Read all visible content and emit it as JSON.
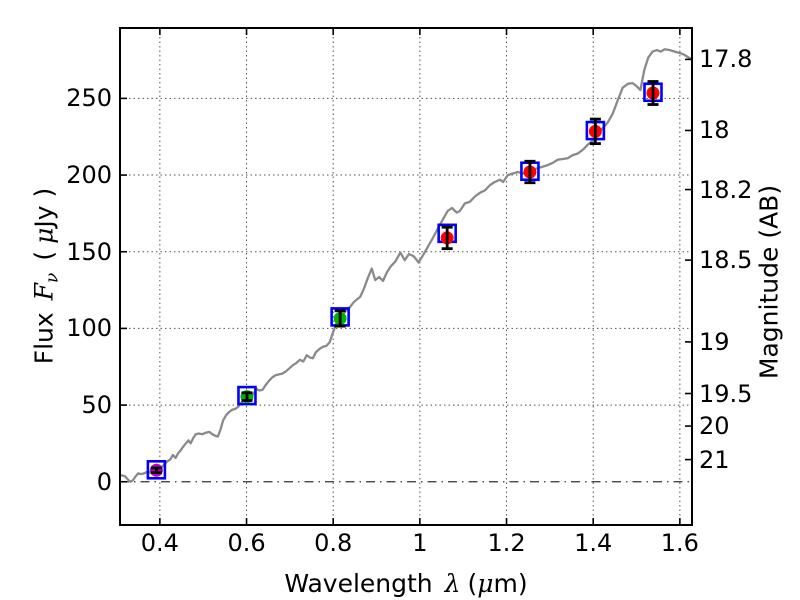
{
  "labels": {
    "xlabel": {
      "prefix": "Wavelength",
      "symbol": "λ",
      "unit_open": "(",
      "unit_mu": "μ",
      "unit_close": "m)"
    },
    "ylabel_left": {
      "prefix": "Flux",
      "symbol": "F",
      "subscript": "ν",
      "unit_open": "(",
      "unit_mu": "μ",
      "unit_close": "Jy )"
    },
    "ylabel_right": "Magnitude (AB)"
  },
  "chart_data": {
    "type": "line",
    "title": "",
    "xlabel": "Wavelength λ (μm)",
    "ylabel_left": "Flux Fν ( μJy )",
    "ylabel_right": "Magnitude (AB)",
    "xlim": [
      0.308,
      1.628
    ],
    "ylim_flux": [
      -28.2,
      295.9
    ],
    "xticks": [
      0.4,
      0.6,
      0.8,
      1.0,
      1.2,
      1.4,
      1.6
    ],
    "xtick_labels": [
      "0.4",
      "0.6",
      "0.8",
      "1",
      "1.2",
      "1.4",
      "1.6"
    ],
    "yticks_flux": [
      0,
      50,
      100,
      150,
      200,
      250
    ],
    "ytick_labels_flux": [
      "0",
      "50",
      "100",
      "150",
      "200",
      "250"
    ],
    "yticks_mag": [
      17.8,
      18.0,
      18.2,
      18.5,
      19.0,
      19.5,
      20.0,
      21.0
    ],
    "ytick_labels_mag": [
      "17.8",
      "18",
      "18.2",
      "18.5",
      "19",
      "19.5",
      "20",
      "21"
    ],
    "mag_ab_zeropoint_ujy": 23.9,
    "grid": "dotted at major ticks of bottom and left axes",
    "zero_flux_line_style": "dash-dot",
    "colors": {
      "spectrum": "#8a8a8a",
      "model_square": "#0000ff",
      "errorbar": "#000000",
      "grid": "#555555",
      "point_uv": "#bf00bf",
      "point_optical": "#00b200",
      "point_infrared": "#ff0000"
    },
    "series": [
      {
        "name": "model-spectrum",
        "type": "line",
        "color": "#8a8a8a",
        "points": [
          [
            0.308,
            4.5
          ],
          [
            0.314,
            4.0
          ],
          [
            0.32,
            3.5
          ],
          [
            0.326,
            1.5
          ],
          [
            0.332,
            0.0
          ],
          [
            0.338,
            1.0
          ],
          [
            0.344,
            3.5
          ],
          [
            0.35,
            5.5
          ],
          [
            0.357,
            5.0
          ],
          [
            0.364,
            5.5
          ],
          [
            0.371,
            6.5
          ],
          [
            0.378,
            6.0
          ],
          [
            0.385,
            7.0
          ],
          [
            0.392,
            7.5
          ],
          [
            0.399,
            8.5
          ],
          [
            0.406,
            10.0
          ],
          [
            0.412,
            12.0
          ],
          [
            0.418,
            13.5
          ],
          [
            0.424,
            14.5
          ],
          [
            0.43,
            17.5
          ],
          [
            0.436,
            15.5
          ],
          [
            0.442,
            18.5
          ],
          [
            0.448,
            20.5
          ],
          [
            0.454,
            23.0
          ],
          [
            0.46,
            25.0
          ],
          [
            0.466,
            27.0
          ],
          [
            0.471,
            25.0
          ],
          [
            0.477,
            28.5
          ],
          [
            0.483,
            31.0
          ],
          [
            0.49,
            31.5
          ],
          [
            0.498,
            31.0
          ],
          [
            0.506,
            32.0
          ],
          [
            0.514,
            32.5
          ],
          [
            0.521,
            31.0
          ],
          [
            0.528,
            30.0
          ],
          [
            0.534,
            29.5
          ],
          [
            0.54,
            34.0
          ],
          [
            0.546,
            40.0
          ],
          [
            0.553,
            43.5
          ],
          [
            0.56,
            45.5
          ],
          [
            0.567,
            47.0
          ],
          [
            0.574,
            47.5
          ],
          [
            0.581,
            49.0
          ],
          [
            0.588,
            51.5
          ],
          [
            0.595,
            53.5
          ],
          [
            0.602,
            55.5
          ],
          [
            0.609,
            56.0
          ],
          [
            0.616,
            57.5
          ],
          [
            0.623,
            60.5
          ],
          [
            0.63,
            59.5
          ],
          [
            0.637,
            60.0
          ],
          [
            0.644,
            63.0
          ],
          [
            0.651,
            65.5
          ],
          [
            0.659,
            68.0
          ],
          [
            0.667,
            69.5
          ],
          [
            0.675,
            70.0
          ],
          [
            0.683,
            70.5
          ],
          [
            0.691,
            72.0
          ],
          [
            0.699,
            74.0
          ],
          [
            0.707,
            76.0
          ],
          [
            0.715,
            77.5
          ],
          [
            0.723,
            79.5
          ],
          [
            0.731,
            78.5
          ],
          [
            0.739,
            82.5
          ],
          [
            0.746,
            81.0
          ],
          [
            0.753,
            80.5
          ],
          [
            0.76,
            84.5
          ],
          [
            0.768,
            86.5
          ],
          [
            0.776,
            88.0
          ],
          [
            0.784,
            88.5
          ],
          [
            0.792,
            91.0
          ],
          [
            0.799,
            97.0
          ],
          [
            0.807,
            103.0
          ],
          [
            0.815,
            106.5
          ],
          [
            0.823,
            109.5
          ],
          [
            0.831,
            112.0
          ],
          [
            0.839,
            114.0
          ],
          [
            0.847,
            117.0
          ],
          [
            0.855,
            119.0
          ],
          [
            0.862,
            120.5
          ],
          [
            0.871,
            126.0
          ],
          [
            0.88,
            133.0
          ],
          [
            0.889,
            139.0
          ],
          [
            0.897,
            131.5
          ],
          [
            0.906,
            133.5
          ],
          [
            0.915,
            131.0
          ],
          [
            0.924,
            136.5
          ],
          [
            0.933,
            140.5
          ],
          [
            0.943,
            143.5
          ],
          [
            0.955,
            149.5
          ],
          [
            0.965,
            144.5
          ],
          [
            0.975,
            148.5
          ],
          [
            0.986,
            147.0
          ],
          [
            0.997,
            143.0
          ],
          [
            1.008,
            148.0
          ],
          [
            1.018,
            153.0
          ],
          [
            1.03,
            159.0
          ],
          [
            1.042,
            165.5
          ],
          [
            1.052,
            170.5
          ],
          [
            1.064,
            176.5
          ],
          [
            1.074,
            178.5
          ],
          [
            1.085,
            175.5
          ],
          [
            1.092,
            176.5
          ],
          [
            1.104,
            181.5
          ],
          [
            1.115,
            182.5
          ],
          [
            1.127,
            186.0
          ],
          [
            1.139,
            188.5
          ],
          [
            1.15,
            190.0
          ],
          [
            1.162,
            193.5
          ],
          [
            1.173,
            195.5
          ],
          [
            1.185,
            197.0
          ],
          [
            1.192,
            195.5
          ],
          [
            1.203,
            200.0
          ],
          [
            1.215,
            201.0
          ],
          [
            1.226,
            202.0
          ],
          [
            1.238,
            201.0
          ],
          [
            1.25,
            203.0
          ],
          [
            1.261,
            203.5
          ],
          [
            1.272,
            204.5
          ],
          [
            1.284,
            205.5
          ],
          [
            1.295,
            206.5
          ],
          [
            1.307,
            208.0
          ],
          [
            1.318,
            210.0
          ],
          [
            1.33,
            210.5
          ],
          [
            1.341,
            211.0
          ],
          [
            1.353,
            213.0
          ],
          [
            1.364,
            214.0
          ],
          [
            1.376,
            216.5
          ],
          [
            1.388,
            220.0
          ],
          [
            1.399,
            222.5
          ],
          [
            1.411,
            227.5
          ],
          [
            1.422,
            230.5
          ],
          [
            1.434,
            234.5
          ],
          [
            1.445,
            240.0
          ],
          [
            1.457,
            249.0
          ],
          [
            1.468,
            257.0
          ],
          [
            1.48,
            259.5
          ],
          [
            1.491,
            260.0
          ],
          [
            1.5,
            258.0
          ],
          [
            1.509,
            255.5
          ],
          [
            1.518,
            268.5
          ],
          [
            1.527,
            276.5
          ],
          [
            1.537,
            280.5
          ],
          [
            1.547,
            281.5
          ],
          [
            1.556,
            280.5
          ],
          [
            1.565,
            282.0
          ],
          [
            1.577,
            281.5
          ],
          [
            1.588,
            280.5
          ],
          [
            1.6,
            279.5
          ],
          [
            1.61,
            278.5
          ],
          [
            1.618,
            277.0
          ],
          [
            1.628,
            275.5
          ]
        ]
      },
      {
        "name": "observed-photometry",
        "type": "scatter-errorbar",
        "points": [
          {
            "wavelength": 0.392,
            "flux": 7.5,
            "err": 1.5,
            "color": "#bf00bf"
          },
          {
            "wavelength": 0.601,
            "flux": 55.5,
            "err": 2.5,
            "color": "#00b200"
          },
          {
            "wavelength": 0.816,
            "flux": 106.5,
            "err": 5.0,
            "color": "#00b200"
          },
          {
            "wavelength": 1.063,
            "flux": 159.0,
            "err": 7.0,
            "color": "#ff0000"
          },
          {
            "wavelength": 1.254,
            "flux": 202.0,
            "err": 7.0,
            "color": "#ff0000"
          },
          {
            "wavelength": 1.405,
            "flux": 228.5,
            "err": 8.0,
            "color": "#ff0000"
          },
          {
            "wavelength": 1.538,
            "flux": 253.5,
            "err": 7.5,
            "color": "#ff0000"
          }
        ]
      },
      {
        "name": "model-photometry",
        "type": "scatter-open-square",
        "color": "#0000ff",
        "points": [
          {
            "wavelength": 0.392,
            "flux": 7.8
          },
          {
            "wavelength": 0.601,
            "flux": 56.2
          },
          {
            "wavelength": 0.816,
            "flux": 107.5
          },
          {
            "wavelength": 1.063,
            "flux": 162.0
          },
          {
            "wavelength": 1.254,
            "flux": 202.5
          },
          {
            "wavelength": 1.405,
            "flux": 229.0
          },
          {
            "wavelength": 1.538,
            "flux": 254.0
          }
        ]
      }
    ]
  }
}
